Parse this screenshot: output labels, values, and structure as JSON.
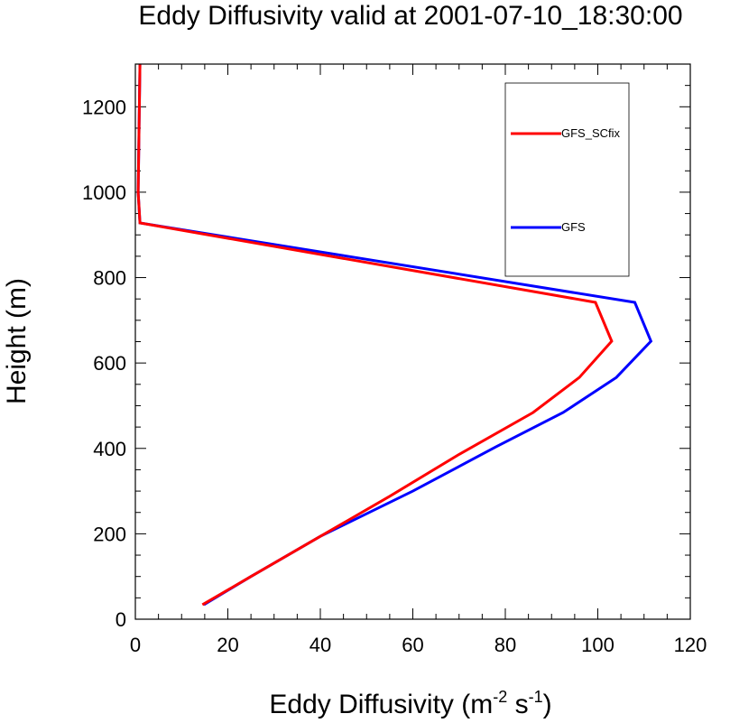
{
  "chart_data": {
    "type": "line",
    "title": "Eddy Diffusivity valid at 2001-07-10_18:30:00",
    "xlabel_main": "Eddy Diffusivity (m",
    "xlabel_sup1": "-2",
    "xlabel_mid": " s",
    "xlabel_sup2": "-1",
    "xlabel_end": ")",
    "ylabel": "Height (m)",
    "xlim": [
      0,
      120
    ],
    "ylim": [
      0,
      1300
    ],
    "xticks": [
      0,
      20,
      40,
      60,
      80,
      100,
      120
    ],
    "xtick_labels": [
      "0",
      "20",
      "40",
      "60",
      "80",
      "100",
      "120"
    ],
    "yticks": [
      0,
      200,
      400,
      600,
      800,
      1000,
      1200
    ],
    "ytick_labels": [
      "0",
      "200",
      "400",
      "600",
      "800",
      "1000",
      "1200"
    ],
    "legend_placement": "top-right",
    "series": [
      {
        "name": "GFS_SCfix",
        "color": "#ff0000",
        "x": [
          14.5,
          25,
          40,
          55,
          70,
          86,
          96,
          103,
          99.5,
          1.0,
          0.6,
          0.8,
          1.0
        ],
        "y": [
          34,
          100,
          194,
          288,
          386,
          484,
          566,
          651,
          742,
          928,
          1000,
          1150,
          1300
        ]
      },
      {
        "name": "GFS",
        "color": "#0000ff",
        "x": [
          14.8,
          25,
          40,
          60,
          78,
          92.5,
          104,
          111.5,
          108,
          1.0,
          0.6,
          0.8,
          1.0
        ],
        "y": [
          34,
          100,
          194,
          300,
          404,
          484,
          566,
          651,
          742,
          928,
          1000,
          1150,
          1300
        ]
      }
    ]
  }
}
